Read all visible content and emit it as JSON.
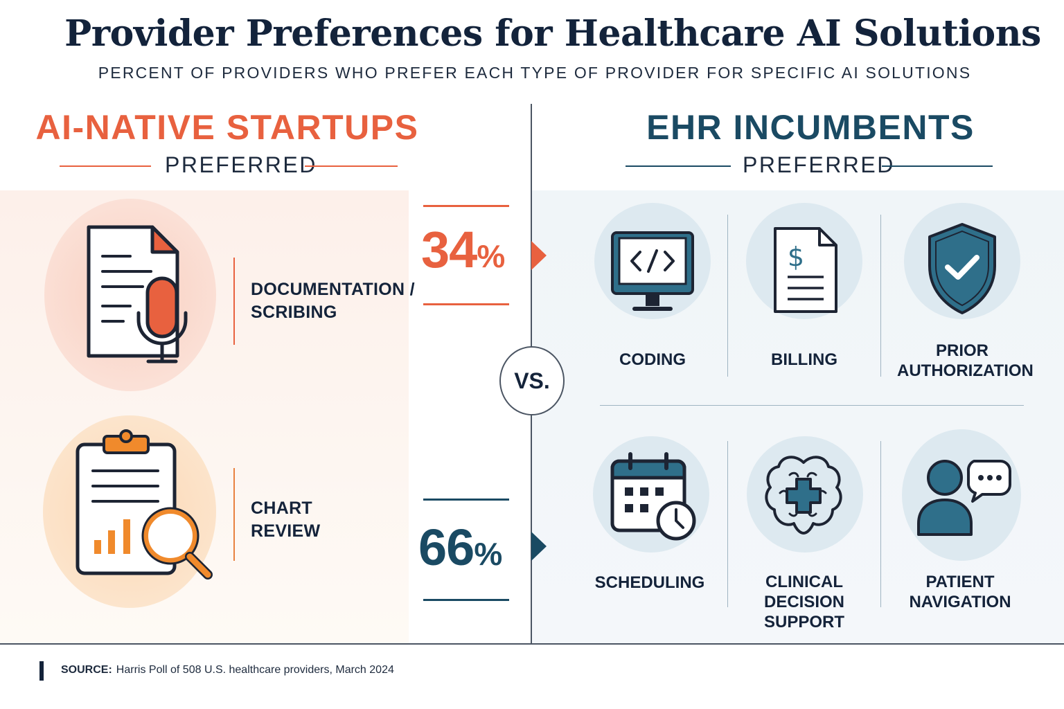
{
  "title": "Provider Preferences for Healthcare AI Solutions",
  "subtitle": "PERCENT OF PROVIDERS WHO PREFER EACH TYPE OF PROVIDER FOR SPECIFIC AI SOLUTIONS",
  "left": {
    "heading": "AI-NATIVE STARTUPS",
    "preferred": "PREFERRED",
    "color": "#e8613f",
    "items": [
      {
        "label_line1": "DOCUMENTATION /",
        "label_line2": "SCRIBING",
        "icon": "document-microphone-icon"
      },
      {
        "label_line1": "CHART",
        "label_line2": "REVIEW",
        "icon": "clipboard-magnifier-icon"
      }
    ]
  },
  "right": {
    "heading": "EHR INCUMBENTS",
    "preferred": "PREFERRED",
    "color": "#1a4a63",
    "items": [
      {
        "label_line1": "CODING",
        "label_line2": "",
        "icon": "monitor-code-icon"
      },
      {
        "label_line1": "BILLING",
        "label_line2": "",
        "icon": "invoice-dollar-icon"
      },
      {
        "label_line1": "PRIOR",
        "label_line2": "AUTHORIZATION",
        "icon": "shield-check-icon"
      },
      {
        "label_line1": "SCHEDULING",
        "label_line2": "",
        "icon": "calendar-clock-icon"
      },
      {
        "label_line1": "CLINICAL",
        "label_line2": "DECISION SUPPORT",
        "icon": "brain-cross-icon"
      },
      {
        "label_line1": "PATIENT",
        "label_line2": "NAVIGATION",
        "icon": "person-chat-icon"
      }
    ]
  },
  "stats": {
    "startups_value": "34",
    "incumbents_value": "66",
    "unit": "%"
  },
  "vs": "VS.",
  "source": {
    "label": "SOURCE:",
    "text": "Harris Poll of 508 U.S. healthcare providers, March 2024"
  }
}
